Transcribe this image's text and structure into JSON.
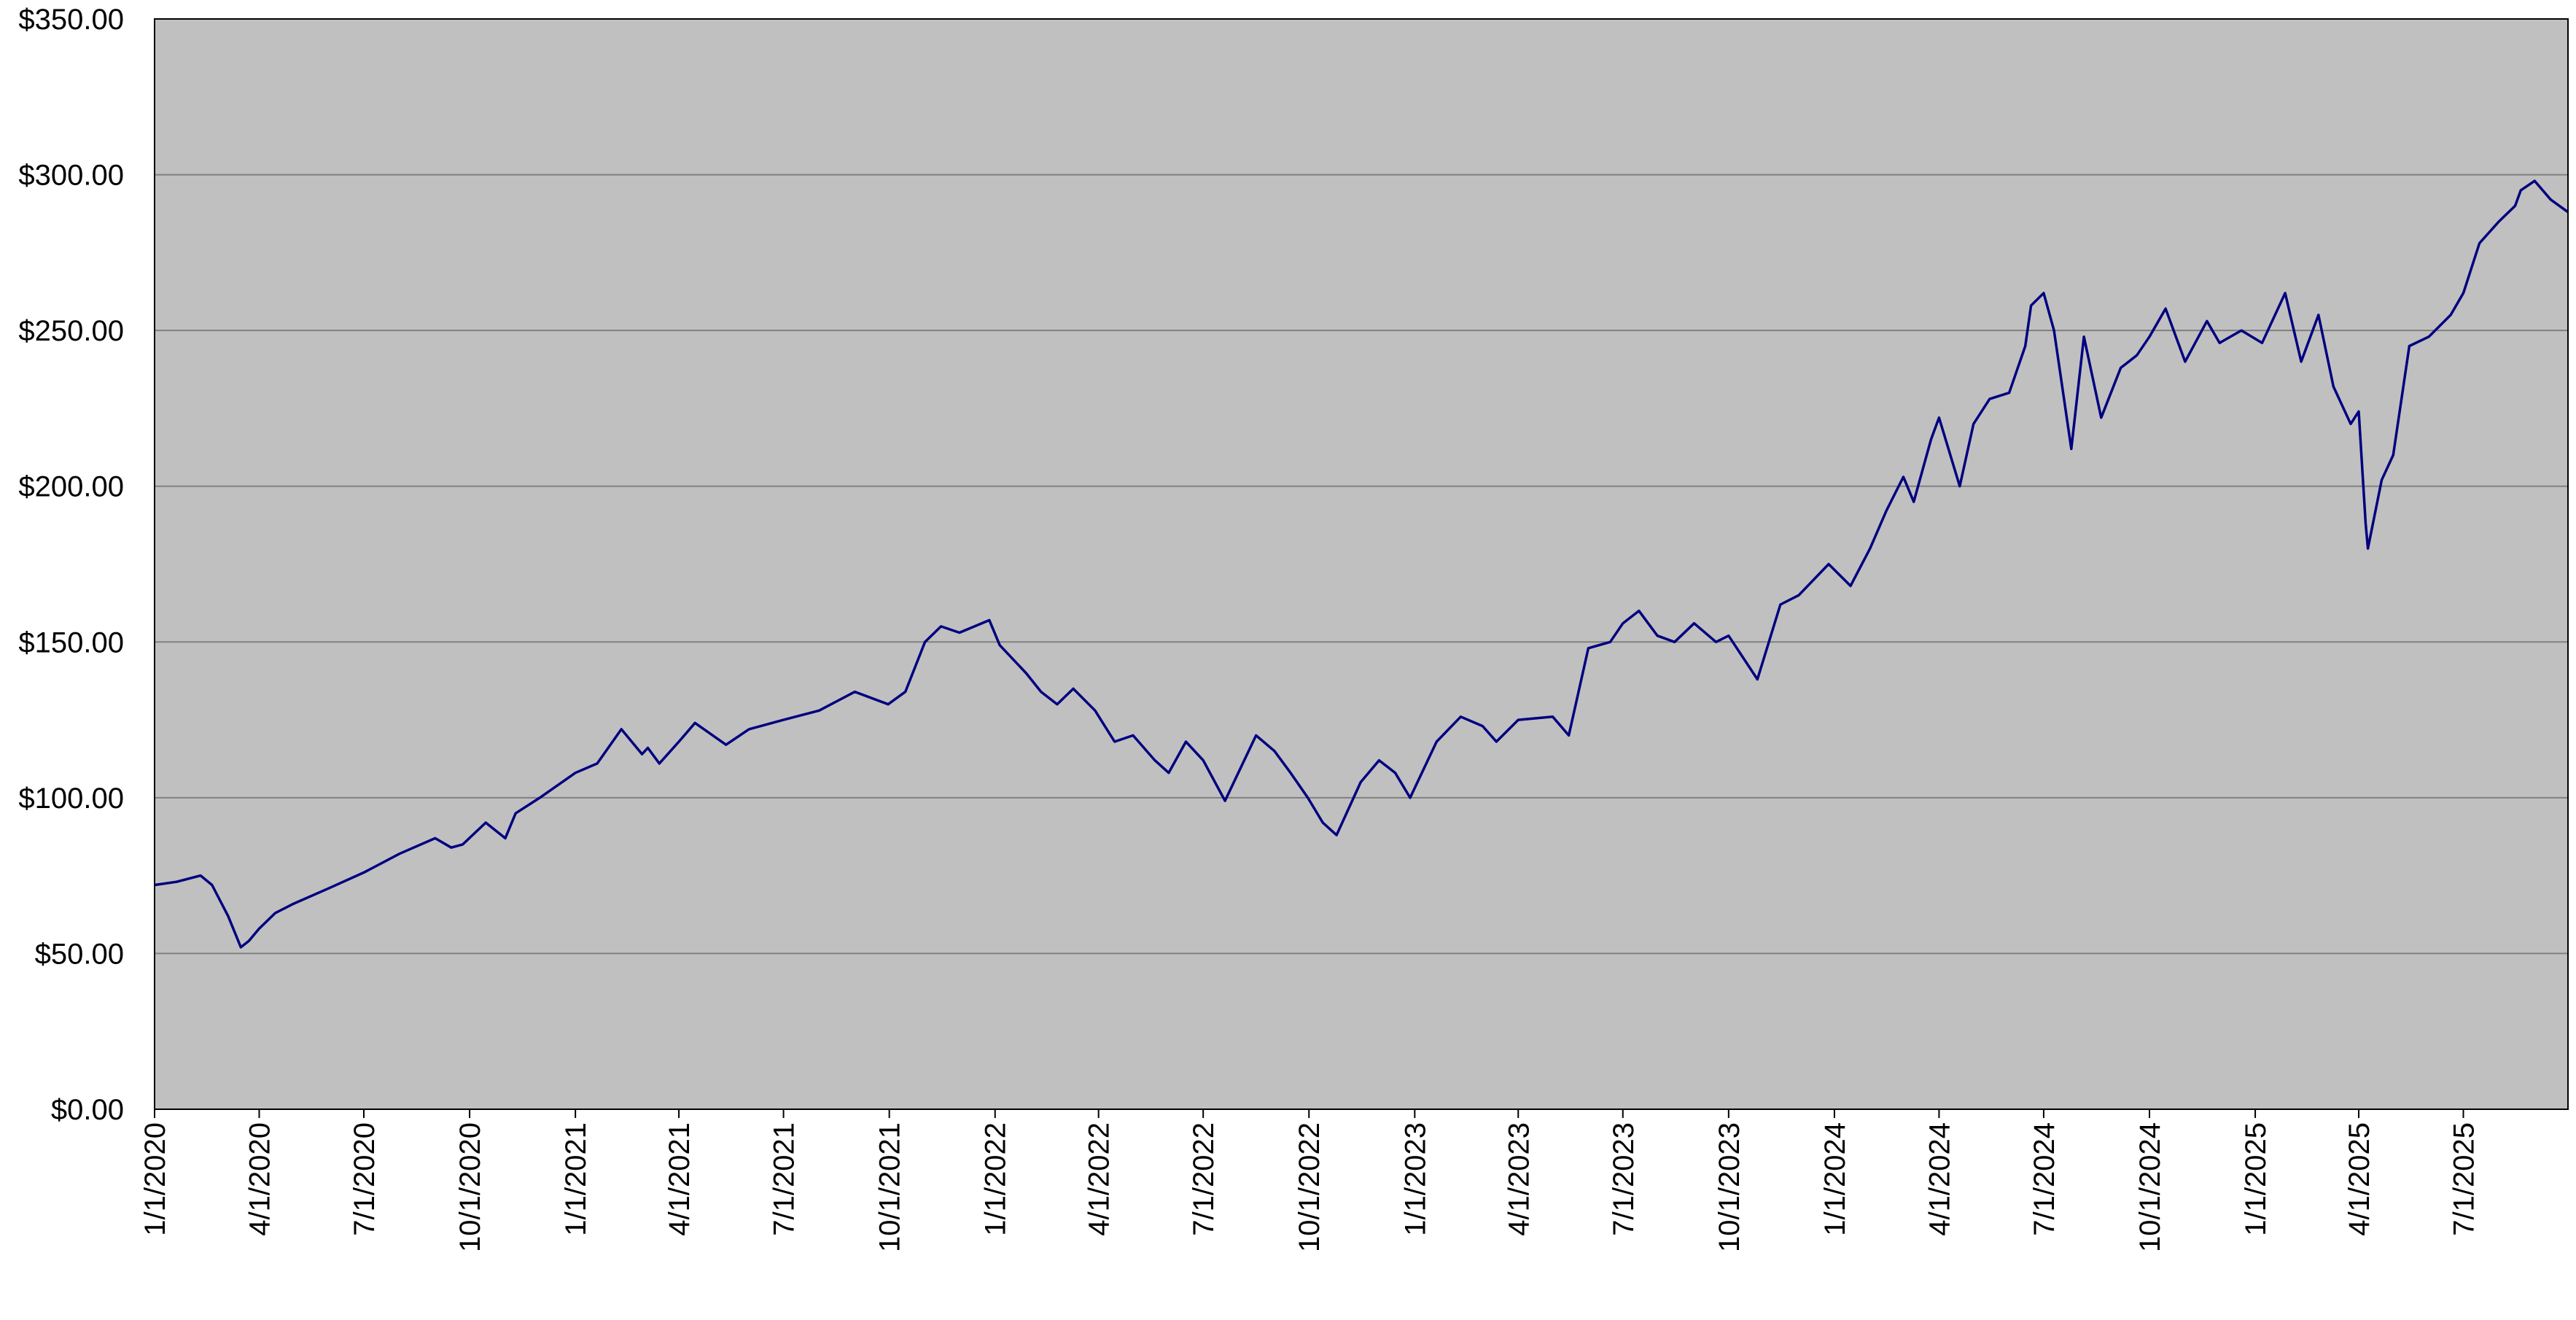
{
  "chart_data": {
    "type": "line",
    "title": "",
    "xlabel": "",
    "ylabel": "",
    "ylim": [
      0,
      350
    ],
    "y_ticks": [
      0,
      50,
      100,
      150,
      200,
      250,
      300,
      350
    ],
    "y_tick_labels": [
      "$0.00",
      "$50.00",
      "$100.00",
      "$150.00",
      "$200.00",
      "$250.00",
      "$300.00",
      "$350.00"
    ],
    "xlim": [
      "2020-01-01",
      "2025-09-30"
    ],
    "x_ticks": [
      "2020-01-01",
      "2020-04-01",
      "2020-07-01",
      "2020-10-01",
      "2021-01-01",
      "2021-04-01",
      "2021-07-01",
      "2021-10-01",
      "2022-01-01",
      "2022-04-01",
      "2022-07-01",
      "2022-10-01",
      "2023-01-01",
      "2023-04-01",
      "2023-07-01",
      "2023-10-01",
      "2024-01-01",
      "2024-04-01",
      "2024-07-01",
      "2024-10-01",
      "2025-01-01",
      "2025-04-01",
      "2025-07-01"
    ],
    "x_tick_labels": [
      "1/1/2020",
      "4/1/2020",
      "7/1/2020",
      "10/1/2020",
      "1/1/2021",
      "4/1/2021",
      "7/1/2021",
      "10/1/2021",
      "1/1/2022",
      "4/1/2022",
      "7/1/2022",
      "10/1/2022",
      "1/1/2023",
      "4/1/2023",
      "7/1/2023",
      "10/1/2023",
      "1/1/2024",
      "4/1/2024",
      "7/1/2024",
      "10/1/2024",
      "1/1/2025",
      "4/1/2025",
      "7/1/2025"
    ],
    "grid": "horizontal",
    "colors": {
      "plot_background": "#C0C0C0",
      "line": "#000080",
      "grid": "#808080"
    },
    "series": [
      {
        "x": [
          "2020-01-01",
          "2020-01-20",
          "2020-02-10",
          "2020-02-20",
          "2020-03-05",
          "2020-03-16",
          "2020-03-23",
          "2020-04-01",
          "2020-04-15",
          "2020-05-01",
          "2020-06-01",
          "2020-07-01",
          "2020-08-01",
          "2020-09-01",
          "2020-09-15",
          "2020-09-25",
          "2020-10-15",
          "2020-11-01",
          "2020-11-10",
          "2020-12-01",
          "2021-01-01",
          "2021-01-20",
          "2021-02-10",
          "2021-02-28",
          "2021-03-05",
          "2021-03-15",
          "2021-04-01",
          "2021-04-15",
          "2021-05-12",
          "2021-06-01",
          "2021-07-01",
          "2021-08-01",
          "2021-09-01",
          "2021-09-30",
          "2021-10-15",
          "2021-11-01",
          "2021-11-15",
          "2021-12-01",
          "2021-12-27",
          "2022-01-05",
          "2022-01-28",
          "2022-02-10",
          "2022-02-24",
          "2022-03-10",
          "2022-03-29",
          "2022-04-15",
          "2022-05-01",
          "2022-05-20",
          "2022-06-01",
          "2022-06-16",
          "2022-07-01",
          "2022-07-20",
          "2022-08-16",
          "2022-09-01",
          "2022-09-15",
          "2022-09-30",
          "2022-10-13",
          "2022-10-25",
          "2022-11-15",
          "2022-12-01",
          "2022-12-15",
          "2022-12-28",
          "2023-01-20",
          "2023-02-10",
          "2023-03-01",
          "2023-03-13",
          "2023-04-01",
          "2023-05-01",
          "2023-05-15",
          "2023-06-01",
          "2023-06-20",
          "2023-07-01",
          "2023-07-15",
          "2023-07-31",
          "2023-08-15",
          "2023-09-01",
          "2023-09-20",
          "2023-10-01",
          "2023-10-26",
          "2023-11-15",
          "2023-12-01",
          "2023-12-27",
          "2024-01-15",
          "2024-02-01",
          "2024-02-15",
          "2024-03-01",
          "2024-03-10",
          "2024-03-25",
          "2024-04-01",
          "2024-04-19",
          "2024-05-01",
          "2024-05-15",
          "2024-06-01",
          "2024-06-15",
          "2024-06-20",
          "2024-07-01",
          "2024-07-10",
          "2024-07-25",
          "2024-08-05",
          "2024-08-20",
          "2024-09-06",
          "2024-09-20",
          "2024-10-01",
          "2024-10-15",
          "2024-11-01",
          "2024-11-20",
          "2024-12-01",
          "2024-12-20",
          "2025-01-07",
          "2025-01-27",
          "2025-02-10",
          "2025-02-25",
          "2025-03-10",
          "2025-03-25",
          "2025-04-01",
          "2025-04-07",
          "2025-04-09",
          "2025-04-21",
          "2025-05-01",
          "2025-05-15",
          "2025-06-01",
          "2025-06-20",
          "2025-07-01",
          "2025-07-15",
          "2025-08-01",
          "2025-08-15",
          "2025-08-20",
          "2025-09-01",
          "2025-09-15",
          "2025-09-30"
        ],
        "y": [
          72,
          73,
          75,
          72,
          62,
          52,
          54,
          58,
          63,
          66,
          71,
          76,
          82,
          87,
          84,
          85,
          92,
          87,
          95,
          100,
          108,
          111,
          122,
          114,
          116,
          111,
          118,
          124,
          117,
          122,
          125,
          128,
          134,
          130,
          134,
          150,
          155,
          153,
          157,
          149,
          140,
          134,
          130,
          135,
          128,
          118,
          120,
          112,
          108,
          118,
          112,
          99,
          120,
          115,
          108,
          100,
          92,
          88,
          105,
          112,
          108,
          100,
          118,
          126,
          123,
          118,
          125,
          126,
          120,
          148,
          150,
          156,
          160,
          152,
          150,
          156,
          150,
          152,
          138,
          162,
          165,
          175,
          168,
          180,
          192,
          203,
          195,
          215,
          222,
          200,
          220,
          228,
          230,
          245,
          258,
          262,
          250,
          212,
          248,
          222,
          238,
          242,
          248,
          257,
          240,
          253,
          246,
          250,
          246,
          262,
          240,
          255,
          232,
          220,
          224,
          188,
          180,
          202,
          210,
          245,
          248,
          255,
          262,
          278,
          285,
          290,
          295,
          298,
          292,
          288
        ]
      }
    ]
  }
}
